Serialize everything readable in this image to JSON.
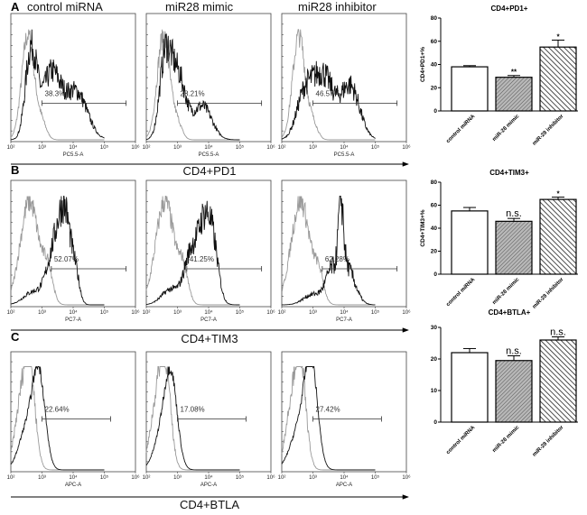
{
  "chart_data": [
    {
      "type": "histogram-overlay",
      "row_label": "A",
      "marker": "CD4+PD1",
      "column_titles": [
        "control miRNA",
        "miR28 mimic",
        "miR28 inhibitor"
      ],
      "x_axis_label": "PC5.5-A",
      "x_ticks": [
        "10²",
        "10³",
        "10⁴",
        "10⁵",
        "10⁶"
      ],
      "x_log_range": [
        2,
        6
      ],
      "gate_log_range": [
        3,
        5.7
      ],
      "panels": [
        {
          "percent": "38.3%",
          "control_curve": [
            [
              2.55,
              0.2,
              1.0
            ],
            [
              3.0,
              0.15,
              0.15
            ]
          ],
          "sample_curve": [
            [
              2.65,
              0.18,
              0.85
            ],
            [
              3.3,
              0.3,
              0.62
            ],
            [
              4.1,
              0.35,
              0.45
            ]
          ],
          "noise": 0.2
        },
        {
          "percent": "28.21%",
          "control_curve": [
            [
              2.55,
              0.2,
              1.0
            ],
            [
              3.0,
              0.15,
              0.15
            ]
          ],
          "sample_curve": [
            [
              2.6,
              0.18,
              0.7
            ],
            [
              3.0,
              0.25,
              0.62
            ],
            [
              3.8,
              0.3,
              0.32
            ]
          ],
          "noise": 0.2
        },
        {
          "percent": "46.57%",
          "control_curve": [
            [
              2.55,
              0.2,
              1.0
            ],
            [
              3.0,
              0.15,
              0.15
            ]
          ],
          "sample_curve": [
            [
              2.7,
              0.25,
              0.35
            ],
            [
              3.3,
              0.35,
              0.62
            ],
            [
              4.2,
              0.3,
              0.5
            ]
          ],
          "noise": 0.22
        }
      ]
    },
    {
      "type": "histogram-overlay",
      "row_label": "B",
      "marker": "CD4+TIM3",
      "x_axis_label": "PC7-A",
      "x_ticks": [
        "10²",
        "10³",
        "10⁴",
        "10⁵",
        "10⁶"
      ],
      "x_log_range": [
        2,
        6
      ],
      "gate_log_range": [
        3.3,
        5.7
      ],
      "panels": [
        {
          "percent": "52.07%",
          "control_curve": [
            [
              2.6,
              0.3,
              1.0
            ],
            [
              3.2,
              0.15,
              0.3
            ]
          ],
          "sample_curve": [
            [
              2.7,
              0.3,
              0.12
            ],
            [
              3.4,
              0.25,
              0.5
            ],
            [
              3.75,
              0.2,
              0.75
            ],
            [
              4.1,
              0.12,
              0.2
            ]
          ],
          "noise": 0.2
        },
        {
          "percent": "41.25%",
          "control_curve": [
            [
              2.6,
              0.3,
              1.0
            ],
            [
              3.2,
              0.15,
              0.3
            ]
          ],
          "sample_curve": [
            [
              2.8,
              0.3,
              0.15
            ],
            [
              3.4,
              0.2,
              0.4
            ],
            [
              3.9,
              0.25,
              0.85
            ],
            [
              4.2,
              0.15,
              0.2
            ]
          ],
          "noise": 0.2
        },
        {
          "percent": "62.28%",
          "control_curve": [
            [
              2.6,
              0.3,
              1.0
            ],
            [
              3.2,
              0.15,
              0.25
            ]
          ],
          "sample_curve": [
            [
              3.0,
              0.3,
              0.1
            ],
            [
              3.6,
              0.2,
              0.3
            ],
            [
              3.9,
              0.08,
              0.7
            ],
            [
              4.1,
              0.25,
              0.35
            ]
          ],
          "noise": 0.25
        }
      ]
    },
    {
      "type": "histogram-overlay",
      "row_label": "C",
      "marker": "CD4+BTLA",
      "x_axis_label": "APC-A",
      "x_ticks": [
        "10²",
        "10³",
        "10⁴",
        "10⁵",
        "10⁶"
      ],
      "x_log_range": [
        2,
        6
      ],
      "gate_log_range": [
        3,
        5.2
      ],
      "panels": [
        {
          "percent": "22.64%",
          "control_curve": [
            [
              2.3,
              0.2,
              0.55
            ],
            [
              2.6,
              0.18,
              1.0
            ]
          ],
          "sample_curve": [
            [
              2.5,
              0.25,
              0.4
            ],
            [
              2.9,
              0.2,
              0.95
            ]
          ],
          "noise": 0.06
        },
        {
          "percent": "17.08%",
          "control_curve": [
            [
              2.3,
              0.2,
              0.55
            ],
            [
              2.6,
              0.18,
              1.0
            ]
          ],
          "sample_curve": [
            [
              2.5,
              0.25,
              0.35
            ],
            [
              2.8,
              0.2,
              0.85
            ]
          ],
          "noise": 0.06
        },
        {
          "percent": "27.42%",
          "control_curve": [
            [
              2.3,
              0.2,
              0.55
            ],
            [
              2.6,
              0.18,
              1.0
            ]
          ],
          "sample_curve": [
            [
              2.6,
              0.3,
              0.45
            ],
            [
              2.95,
              0.2,
              0.95
            ]
          ],
          "noise": 0.06
        }
      ]
    },
    {
      "type": "bar",
      "title": "CD4+PD1+",
      "ylabel": "CD4+PD1+%",
      "categories": [
        "control miRNA",
        "miR-28 mimic",
        "miR-28 inhibitor"
      ],
      "values": [
        38,
        29,
        55
      ],
      "errors": [
        1,
        1.5,
        6
      ],
      "significance": [
        "",
        "**",
        "*"
      ],
      "ylim": [
        0,
        80
      ],
      "yticks": [
        0,
        20,
        40,
        60,
        80
      ]
    },
    {
      "type": "bar",
      "title": "CD4+TIM3+",
      "ylabel": "CD4+TIM3+%",
      "categories": [
        "control miRNA",
        "miR-28 mimic",
        "miR-28 inhibitor"
      ],
      "values": [
        55,
        46,
        65
      ],
      "errors": [
        3,
        2.5,
        2
      ],
      "significance": [
        "",
        "n.s.",
        "*"
      ],
      "ylim": [
        0,
        80
      ],
      "yticks": [
        0,
        20,
        40,
        60,
        80
      ]
    },
    {
      "type": "bar",
      "title": "CD4+BTLA+",
      "ylabel": "",
      "categories": [
        "control miRNA",
        "miR-28 mimic",
        "miR-28 inhibitor"
      ],
      "values": [
        22,
        19.5,
        26
      ],
      "errors": [
        1.3,
        1.5,
        1
      ],
      "significance": [
        "",
        "n.s.",
        "n.s."
      ],
      "ylim": [
        0,
        30
      ],
      "yticks": [
        0,
        10,
        20,
        30
      ]
    }
  ]
}
